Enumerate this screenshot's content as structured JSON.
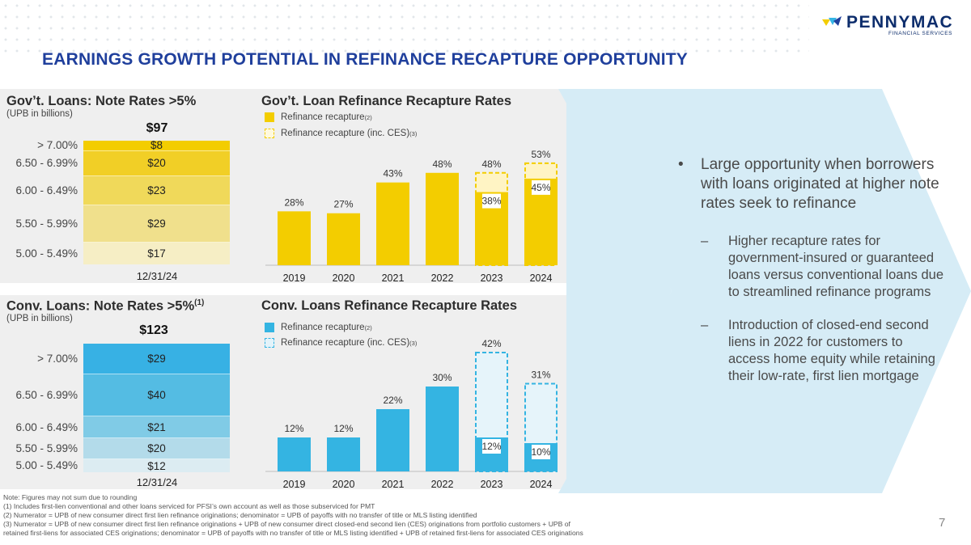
{
  "brand": {
    "name": "PENNYMAC",
    "sub": "FINANCIAL SERVICES"
  },
  "title": "EARNINGS GROWTH POTENTIAL IN REFINANCE RECAPTURE OPPORTUNITY",
  "colors": {
    "gov_stack": [
      "#f6eec5",
      "#f0e08c",
      "#f0d95a",
      "#f1cf26",
      "#f3cd00"
    ],
    "gov_bar": "#f3cd00",
    "conv_stack": [
      "#dcecf2",
      "#b3dbea",
      "#80cbe6",
      "#54bce3",
      "#37b1e4"
    ],
    "conv_bar": "#34b4e2",
    "title_blue": "#1f3f9c"
  },
  "gov_notes": {
    "title": "Gov’t. Loans: Note Rates >5%",
    "subtitle": "(UPB in billions)",
    "total": "$97",
    "date": "12/31/24",
    "segments": [
      {
        "label": "5.00 - 5.49%",
        "value": "$17",
        "amount": 17
      },
      {
        "label": "5.50 - 5.99%",
        "value": "$29",
        "amount": 29
      },
      {
        "label": "6.00 - 6.49%",
        "value": "$23",
        "amount": 23
      },
      {
        "label": "6.50 - 6.99%",
        "value": "$20",
        "amount": 20
      },
      {
        "label": "> 7.00%",
        "value": "$8",
        "amount": 8
      }
    ]
  },
  "conv_notes": {
    "title": "Conv. Loans: Note Rates >5%",
    "title_sup": "(1)",
    "subtitle": "(UPB in billions)",
    "total": "$123",
    "date": "12/31/24",
    "segments": [
      {
        "label": "5.00 - 5.49%",
        "value": "$12",
        "amount": 12
      },
      {
        "label": "5.50 - 5.99%",
        "value": "$20",
        "amount": 20
      },
      {
        "label": "6.00 - 6.49%",
        "value": "$21",
        "amount": 21
      },
      {
        "label": "6.50 - 6.99%",
        "value": "$40",
        "amount": 40
      },
      {
        "label": "> 7.00%",
        "value": "$29",
        "amount": 29
      }
    ]
  },
  "gov_recap": {
    "title": "Gov’t. Loan Refinance Recapture Rates",
    "legend_solid": "Refinance recapture",
    "legend_solid_sup": "(2)",
    "legend_dashed": "Refinance recapture (inc. CES)",
    "legend_dashed_sup": "(3)"
  },
  "conv_recap": {
    "title": "Conv. Loans Refinance Recapture Rates",
    "legend_solid": "Refinance recapture",
    "legend_solid_sup": "(2)",
    "legend_dashed": "Refinance recapture (inc. CES)",
    "legend_dashed_sup": "(3)"
  },
  "bullets": {
    "main": "Large opportunity when borrowers with loans originated at higher note rates seek to refinance",
    "sub1": "Higher recapture rates for government-insured or guaranteed loans versus conventional loans due to streamlined refinance programs",
    "sub2": "Introduction of closed-end second liens in 2022 for customers to access home equity while retaining their low-rate, first lien mortgage"
  },
  "footnotes": [
    "Note: Figures may not sum due to rounding",
    "(1) Includes first-lien conventional and other loans serviced for PFSI’s own account as well as those subserviced for PMT",
    "(2) Numerator = UPB of new consumer direct first lien refinance originations; denominator = UPB of payoffs with no transfer of title or MLS listing identified",
    "(3) Numerator = UPB of new consumer direct first lien refinance originations + UPB of new consumer direct closed-end second lien (CES) originations from portfolio customers + UPB of",
    "retained first-liens for associated CES originations; denominator = UPB of payoffs with no transfer of title or MLS listing identified + UPB of retained first-liens for associated CES originations"
  ],
  "page_number": "7",
  "chart_data": [
    {
      "type": "bar",
      "title": "Gov’t. Loans: Note Rates >5%",
      "subtitle": "(UPB in billions)",
      "stacked": true,
      "categories": [
        "12/31/24"
      ],
      "series": [
        {
          "name": "5.00 - 5.49%",
          "values": [
            17
          ]
        },
        {
          "name": "5.50 - 5.99%",
          "values": [
            29
          ]
        },
        {
          "name": "6.00 - 6.49%",
          "values": [
            23
          ]
        },
        {
          "name": "6.50 - 6.99%",
          "values": [
            20
          ]
        },
        {
          "name": "> 7.00%",
          "values": [
            8
          ]
        }
      ],
      "total": 97
    },
    {
      "type": "bar",
      "title": "Gov’t. Loan Refinance Recapture Rates",
      "categories": [
        "2019",
        "2020",
        "2021",
        "2022",
        "2023",
        "2024"
      ],
      "ylim": [
        0,
        60
      ],
      "series": [
        {
          "name": "Refinance recapture",
          "values": [
            28,
            27,
            43,
            48,
            38,
            45
          ]
        },
        {
          "name": "Refinance recapture (inc. CES)",
          "values": [
            null,
            null,
            null,
            null,
            48,
            53
          ]
        }
      ]
    },
    {
      "type": "bar",
      "title": "Conv. Loans: Note Rates >5%",
      "subtitle": "(UPB in billions)",
      "stacked": true,
      "categories": [
        "12/31/24"
      ],
      "series": [
        {
          "name": "5.00 - 5.49%",
          "values": [
            12
          ]
        },
        {
          "name": "5.50 - 5.99%",
          "values": [
            20
          ]
        },
        {
          "name": "6.00 - 6.49%",
          "values": [
            21
          ]
        },
        {
          "name": "6.50 - 6.99%",
          "values": [
            40
          ]
        },
        {
          "name": "> 7.00%",
          "values": [
            29
          ]
        }
      ],
      "total": 123
    },
    {
      "type": "bar",
      "title": "Conv. Loans Refinance Recapture Rates",
      "categories": [
        "2019",
        "2020",
        "2021",
        "2022",
        "2023",
        "2024"
      ],
      "ylim": [
        0,
        45
      ],
      "series": [
        {
          "name": "Refinance recapture",
          "values": [
            12,
            12,
            22,
            30,
            12,
            10
          ]
        },
        {
          "name": "Refinance recapture (inc. CES)",
          "values": [
            null,
            null,
            null,
            null,
            42,
            31
          ]
        }
      ]
    }
  ]
}
